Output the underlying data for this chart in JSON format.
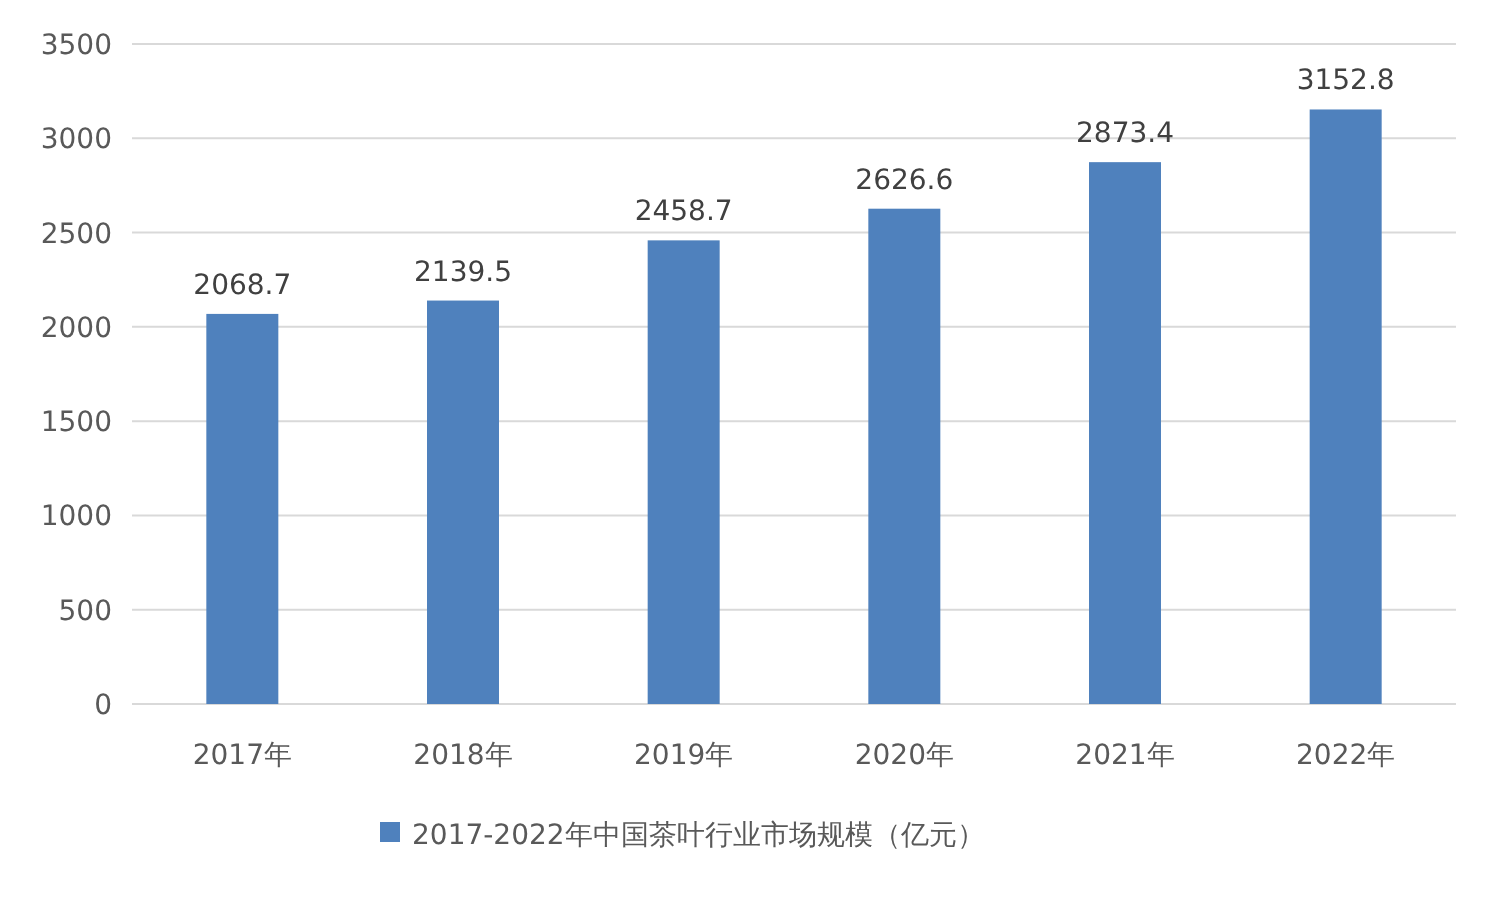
{
  "chart_data": {
    "type": "bar",
    "categories": [
      "2017年",
      "2018年",
      "2019年",
      "2020年",
      "2021年",
      "2022年"
    ],
    "series": [
      {
        "name": "2017-2022年中国茶叶行业市场规模（亿元）",
        "color": "#4f81bd",
        "values": [
          2068.7,
          2139.5,
          2458.7,
          2626.6,
          2873.4,
          3152.8
        ]
      }
    ],
    "ylim": [
      0,
      3500
    ],
    "yticks": [
      0,
      500,
      1000,
      1500,
      2000,
      2500,
      3000,
      3500
    ],
    "grid": "y",
    "legend": "bottom",
    "data_labels": true
  }
}
